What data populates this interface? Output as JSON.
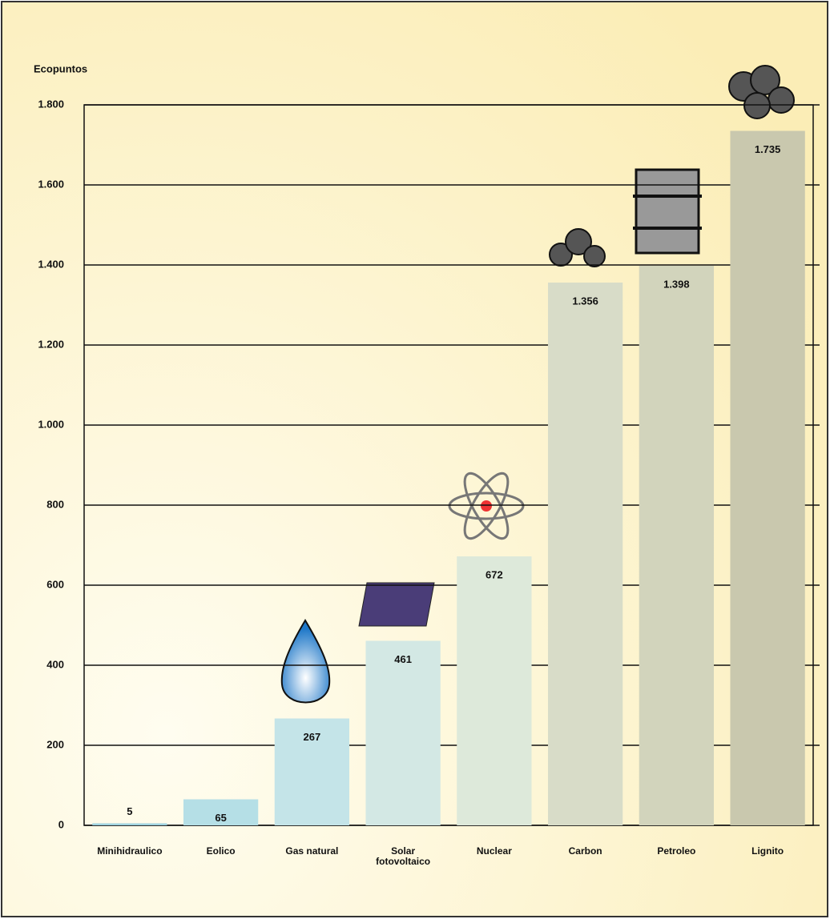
{
  "chart_data": {
    "type": "bar",
    "y_axis_label": "Ecopuntos",
    "categories": [
      "Minihidraulico",
      "Eolico",
      "Gas natural",
      "Solar fotovoltaico",
      "Nuclear",
      "Carbon",
      "Petroleo",
      "Lignito"
    ],
    "values": [
      5,
      65,
      267,
      461,
      672,
      1356,
      1398,
      1735
    ],
    "value_labels": [
      "5",
      "65",
      "267",
      "461",
      "672",
      "1.356",
      "1.398",
      "1.735"
    ],
    "colors": [
      "#9fd3df",
      "#b5dfe6",
      "#c4e4e8",
      "#d3e8e4",
      "#dde9da",
      "#d8dcc8",
      "#d2d4bc",
      "#c9c8ae"
    ],
    "ylim": [
      0,
      1800
    ],
    "yticks": [
      0,
      200,
      400,
      600,
      800,
      {
        "value": 1000,
        "label": "1.000"
      },
      {
        "value": 1200,
        "label": "1.200"
      },
      {
        "value": 1400,
        "label": "1.400"
      },
      {
        "value": 1600,
        "label": "1.600"
      },
      {
        "value": 1800,
        "label": "1.800"
      }
    ],
    "grid": true
  }
}
